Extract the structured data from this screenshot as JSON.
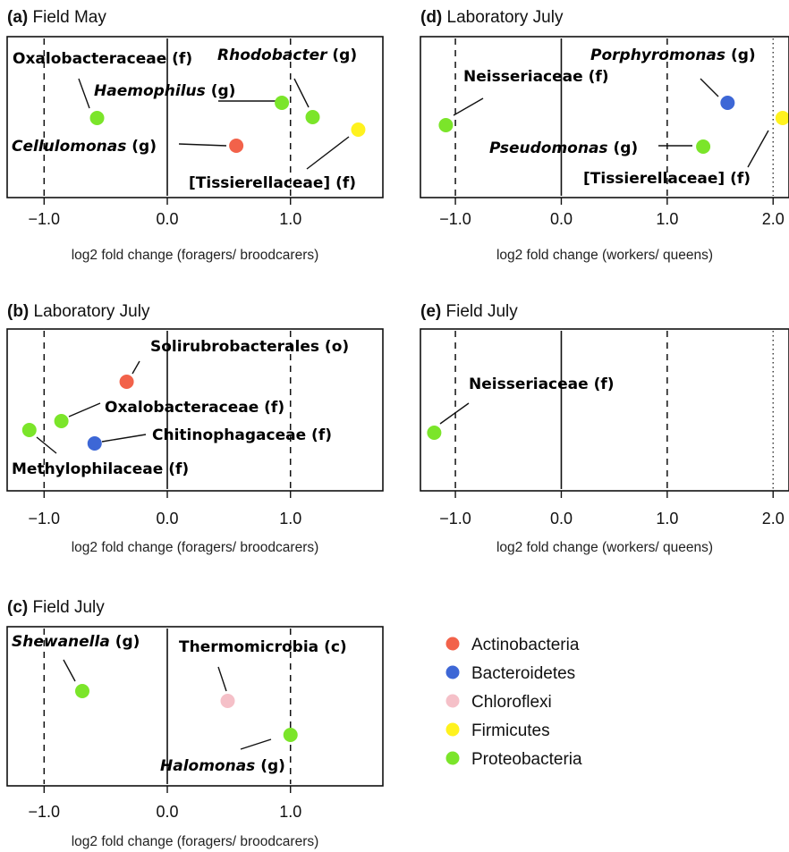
{
  "palette": {
    "Actinobacteria": "#f2624a",
    "Bacteroidetes": "#3d67d6",
    "Chloroflexi": "#f5c0c8",
    "Firmicutes": "#fff21e",
    "Proteobacteria": "#7be52a"
  },
  "legend": {
    "position": "bottom-right",
    "items": [
      {
        "name": "Actinobacteria",
        "color": "#f2624a"
      },
      {
        "name": "Bacteroidetes",
        "color": "#3d67d6"
      },
      {
        "name": "Chloroflexi",
        "color": "#f5c0c8"
      },
      {
        "name": "Firmicutes",
        "color": "#fff21e"
      },
      {
        "name": "Proteobacteria",
        "color": "#7be52a"
      }
    ]
  },
  "chart_data": [
    {
      "id": "a",
      "type": "scatter",
      "panel": "(a)",
      "title": "Field May",
      "xlabel": "log2 fold change (foragers/ broodcarers)",
      "xlim": [
        -1.3,
        1.75
      ],
      "ticks": [
        -1.0,
        0.0,
        1.0
      ],
      "tick_labels": [
        "−1.0",
        "0.0",
        "1.0"
      ],
      "solid_lines": [
        0.0
      ],
      "dashed_lines": [
        -1.0,
        1.0
      ],
      "dotted_lines": [],
      "points": [
        {
          "x": -0.57,
          "phylum": "Proteobacteria",
          "name": "Oxalobacteraceae",
          "rank": "(f)",
          "italic": false
        },
        {
          "x": 0.93,
          "phylum": "Proteobacteria",
          "name": "Haemophilus",
          "rank": "(g)",
          "italic": true
        },
        {
          "x": 1.18,
          "phylum": "Proteobacteria",
          "name": "Rhodobacter",
          "rank": "(g)",
          "italic": true
        },
        {
          "x": 0.56,
          "phylum": "Actinobacteria",
          "name": "Cellulomonas",
          "rank": "(g)",
          "italic": true
        },
        {
          "x": 1.55,
          "phylum": "Firmicutes",
          "name": "[Tissierellaceae]",
          "rank": "(f)",
          "italic": false
        }
      ]
    },
    {
      "id": "b",
      "type": "scatter",
      "panel": "(b)",
      "title": "Laboratory July",
      "xlabel": "log2 fold change (foragers/ broodcarers)",
      "xlim": [
        -1.3,
        1.75
      ],
      "ticks": [
        -1.0,
        0.0,
        1.0
      ],
      "tick_labels": [
        "−1.0",
        "0.0",
        "1.0"
      ],
      "solid_lines": [
        0.0
      ],
      "dashed_lines": [
        -1.0,
        1.0
      ],
      "dotted_lines": [],
      "points": [
        {
          "x": -0.33,
          "phylum": "Actinobacteria",
          "name": "Solirubrobacterales",
          "rank": "(o)",
          "italic": false
        },
        {
          "x": -0.86,
          "phylum": "Proteobacteria",
          "name": "Oxalobacteraceae",
          "rank": "(f)",
          "italic": false
        },
        {
          "x": -0.59,
          "phylum": "Bacteroidetes",
          "name": "Chitinophagaceae",
          "rank": "(f)",
          "italic": false
        },
        {
          "x": -1.12,
          "phylum": "Proteobacteria",
          "name": "Methylophilaceae",
          "rank": "(f)",
          "italic": false
        }
      ]
    },
    {
      "id": "c",
      "type": "scatter",
      "panel": "(c)",
      "title": "Field July",
      "xlabel": "log2 fold change (foragers/ broodcarers)",
      "xlim": [
        -1.3,
        1.75
      ],
      "ticks": [
        -1.0,
        0.0,
        1.0
      ],
      "tick_labels": [
        "−1.0",
        "0.0",
        "1.0"
      ],
      "solid_lines": [
        0.0
      ],
      "dashed_lines": [
        -1.0,
        1.0
      ],
      "dotted_lines": [],
      "points": [
        {
          "x": -0.69,
          "phylum": "Proteobacteria",
          "name": "Shewanella",
          "rank": "(g)",
          "italic": true
        },
        {
          "x": 0.49,
          "phylum": "Chloroflexi",
          "name": "Thermomicrobia",
          "rank": "(c)",
          "italic": false
        },
        {
          "x": 1.0,
          "phylum": "Proteobacteria",
          "name": "Halomonas",
          "rank": "(g)",
          "italic": true
        }
      ]
    },
    {
      "id": "d",
      "type": "scatter",
      "panel": "(d)",
      "title": "Laboratory July",
      "xlabel": "log2 fold change (workers/ queens)",
      "xlim": [
        -1.33,
        2.15
      ],
      "ticks": [
        -1.0,
        0.0,
        1.0,
        2.0
      ],
      "tick_labels": [
        "−1.0",
        "0.0",
        "1.0",
        "2.0"
      ],
      "solid_lines": [
        0.0
      ],
      "dashed_lines": [
        -1.0,
        1.0
      ],
      "dotted_lines": [
        2.0
      ],
      "points": [
        {
          "x": 1.57,
          "phylum": "Bacteroidetes",
          "name": "Porphyromonas",
          "rank": "(g)",
          "italic": true
        },
        {
          "x": -1.09,
          "phylum": "Proteobacteria",
          "name": "Neisseriaceae",
          "rank": "(f)",
          "italic": false
        },
        {
          "x": 1.34,
          "phylum": "Proteobacteria",
          "name": "Pseudomonas",
          "rank": "(g)",
          "italic": true
        },
        {
          "x": 2.09,
          "phylum": "Firmicutes",
          "name": "[Tissierellaceae]",
          "rank": "(f)",
          "italic": false
        }
      ]
    },
    {
      "id": "e",
      "type": "scatter",
      "panel": "(e)",
      "title": "Field July",
      "xlabel": "log2 fold change (workers/ queens)",
      "xlim": [
        -1.33,
        2.15
      ],
      "ticks": [
        -1.0,
        0.0,
        1.0,
        2.0
      ],
      "tick_labels": [
        "−1.0",
        "0.0",
        "1.0",
        "2.0"
      ],
      "solid_lines": [
        0.0
      ],
      "dashed_lines": [
        -1.0,
        1.0
      ],
      "dotted_lines": [
        2.0
      ],
      "points": [
        {
          "x": -1.2,
          "phylum": "Proteobacteria",
          "name": "Neisseriaceae",
          "rank": "(f)",
          "italic": false
        }
      ]
    }
  ]
}
